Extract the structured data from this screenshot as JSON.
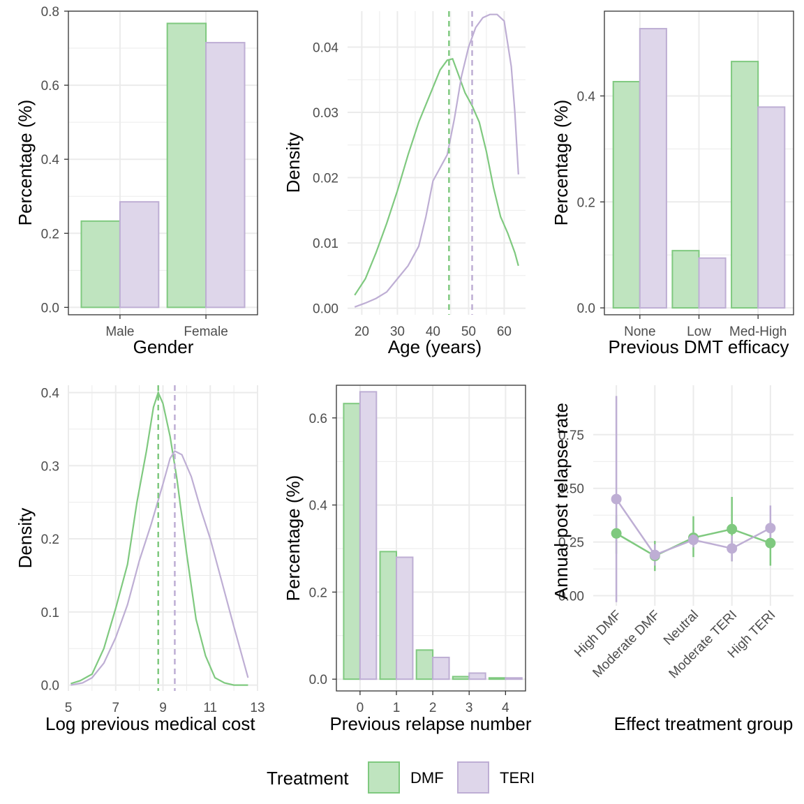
{
  "colors": {
    "DMF": "#7fc97f",
    "TERI": "#beaed4",
    "DMF_fill": "#bfe4bf",
    "TERI_fill": "#ded6ea"
  },
  "legend": {
    "title": "Treatment",
    "items": [
      {
        "key": "DMF",
        "label": "DMF"
      },
      {
        "key": "TERI",
        "label": "TERI"
      }
    ]
  },
  "chart_data": [
    {
      "id": "gender",
      "type": "bar",
      "theme": "bw",
      "xlabel": "Gender",
      "ylabel": "Percentage (%)",
      "categories": [
        "Male",
        "Female"
      ],
      "ylim": [
        -0.02,
        0.8
      ],
      "yticks": [
        0.0,
        0.2,
        0.4,
        0.6,
        0.8
      ],
      "series": [
        {
          "name": "DMF",
          "values": [
            0.233,
            0.767
          ]
        },
        {
          "name": "TERI",
          "values": [
            0.285,
            0.715
          ]
        }
      ]
    },
    {
      "id": "age",
      "type": "line",
      "theme": "minimal",
      "xlabel": "Age (years)",
      "ylabel": "Density",
      "xlim": [
        16,
        66
      ],
      "ylim": [
        -0.001,
        0.0455
      ],
      "xticks": [
        20,
        30,
        40,
        50,
        60
      ],
      "yticks": [
        0.0,
        0.01,
        0.02,
        0.03,
        0.04
      ],
      "vlines": [
        {
          "series": "DMF",
          "x": 44.5
        },
        {
          "series": "TERI",
          "x": 51.0
        }
      ],
      "series": [
        {
          "name": "DMF",
          "points": [
            [
              18,
              0.002
            ],
            [
              21,
              0.0045
            ],
            [
              24,
              0.0085
            ],
            [
              27,
              0.013
            ],
            [
              30,
              0.018
            ],
            [
              33,
              0.0235
            ],
            [
              36,
              0.0285
            ],
            [
              39,
              0.0325
            ],
            [
              42,
              0.0365
            ],
            [
              44,
              0.038
            ],
            [
              45.5,
              0.0382
            ],
            [
              47,
              0.036
            ],
            [
              49,
              0.033
            ],
            [
              51,
              0.031
            ],
            [
              53,
              0.0285
            ],
            [
              55,
              0.024
            ],
            [
              57,
              0.0185
            ],
            [
              59,
              0.014
            ],
            [
              61,
              0.0115
            ],
            [
              63,
              0.0085
            ],
            [
              64,
              0.0065
            ]
          ]
        },
        {
          "name": "TERI",
          "points": [
            [
              18,
              0.0002
            ],
            [
              21,
              0.0008
            ],
            [
              24,
              0.0015
            ],
            [
              27,
              0.0025
            ],
            [
              30,
              0.0045
            ],
            [
              33,
              0.0065
            ],
            [
              36,
              0.0095
            ],
            [
              38,
              0.014
            ],
            [
              40,
              0.0195
            ],
            [
              42,
              0.0215
            ],
            [
              44,
              0.0235
            ],
            [
              46,
              0.029
            ],
            [
              48,
              0.0355
            ],
            [
              50,
              0.04
            ],
            [
              52,
              0.043
            ],
            [
              54,
              0.0445
            ],
            [
              56,
              0.045
            ],
            [
              58,
              0.045
            ],
            [
              60,
              0.044
            ],
            [
              62,
              0.037
            ],
            [
              63,
              0.03
            ],
            [
              64,
              0.0205
            ]
          ]
        }
      ]
    },
    {
      "id": "dmt",
      "type": "bar",
      "theme": "bw",
      "xlabel": "Previous DMT efficacy",
      "ylabel": "Percentage (%)",
      "categories": [
        "None",
        "Low",
        "Med-High"
      ],
      "ylim": [
        -0.013,
        0.56
      ],
      "yticks": [
        0.0,
        0.2,
        0.4
      ],
      "series": [
        {
          "name": "DMF",
          "values": [
            0.427,
            0.108,
            0.465
          ]
        },
        {
          "name": "TERI",
          "values": [
            0.527,
            0.094,
            0.379
          ]
        }
      ]
    },
    {
      "id": "cost",
      "type": "line",
      "theme": "minimal",
      "xlabel": "Log previous medical cost",
      "ylabel": "Density",
      "xlim": [
        5,
        13
      ],
      "ylim": [
        -0.008,
        0.41
      ],
      "xticks": [
        5,
        7,
        9,
        11,
        13
      ],
      "yticks": [
        0.0,
        0.1,
        0.2,
        0.3,
        0.4
      ],
      "vlines": [
        {
          "series": "DMF",
          "x": 8.8
        },
        {
          "series": "TERI",
          "x": 9.5
        }
      ],
      "series": [
        {
          "name": "DMF",
          "points": [
            [
              5.1,
              0.002
            ],
            [
              5.5,
              0.006
            ],
            [
              6.0,
              0.015
            ],
            [
              6.5,
              0.05
            ],
            [
              7.0,
              0.105
            ],
            [
              7.5,
              0.165
            ],
            [
              7.9,
              0.25
            ],
            [
              8.3,
              0.32
            ],
            [
              8.6,
              0.38
            ],
            [
              8.8,
              0.4
            ],
            [
              9.0,
              0.385
            ],
            [
              9.3,
              0.34
            ],
            [
              9.6,
              0.28
            ],
            [
              10.0,
              0.18
            ],
            [
              10.4,
              0.09
            ],
            [
              10.8,
              0.04
            ],
            [
              11.2,
              0.01
            ],
            [
              11.6,
              0.003
            ],
            [
              12.0,
              0.0
            ],
            [
              12.6,
              0.0
            ]
          ]
        },
        {
          "name": "TERI",
          "points": [
            [
              5.1,
              0.0
            ],
            [
              5.6,
              0.003
            ],
            [
              6.0,
              0.01
            ],
            [
              6.5,
              0.03
            ],
            [
              7.0,
              0.065
            ],
            [
              7.5,
              0.11
            ],
            [
              8.0,
              0.17
            ],
            [
              8.5,
              0.22
            ],
            [
              9.0,
              0.275
            ],
            [
              9.3,
              0.31
            ],
            [
              9.5,
              0.32
            ],
            [
              9.8,
              0.315
            ],
            [
              10.2,
              0.285
            ],
            [
              10.6,
              0.24
            ],
            [
              11.0,
              0.2
            ],
            [
              11.5,
              0.14
            ],
            [
              12.0,
              0.08
            ],
            [
              12.3,
              0.045
            ],
            [
              12.6,
              0.01
            ]
          ]
        }
      ]
    },
    {
      "id": "relapse",
      "type": "bar",
      "theme": "bw",
      "xlabel": "Previous relapse number",
      "ylabel": "Percentage (%)",
      "categories": [
        "0",
        "1",
        "2",
        "3",
        "4"
      ],
      "xlim": [
        -0.65,
        4.55
      ],
      "ylim": [
        -0.027,
        0.675
      ],
      "yticks": [
        0.0,
        0.2,
        0.4,
        0.6
      ],
      "series": [
        {
          "name": "DMF",
          "values": [
            0.633,
            0.293,
            0.067,
            0.006,
            0.003
          ]
        },
        {
          "name": "TERI",
          "values": [
            0.66,
            0.28,
            0.05,
            0.014,
            0.003
          ]
        }
      ]
    },
    {
      "id": "effect",
      "type": "scatter",
      "theme": "minimal",
      "xlabel": "Effect treatment group",
      "ylabel": "Annual post relapse rate",
      "categories": [
        "High DMF",
        "Moderate DMF",
        "Neutral",
        "Moderate TERI",
        "High TERI"
      ],
      "ylim": [
        -0.047,
        0.98
      ],
      "yticks": [
        0.0,
        0.25,
        0.5,
        0.75
      ],
      "ytick_labels": [
        "0.00",
        "0.25",
        "0.50",
        "0.75"
      ],
      "series": [
        {
          "name": "DMF",
          "values": [
            0.29,
            0.185,
            0.27,
            0.31,
            0.245
          ],
          "lower": [
            0.195,
            0.115,
            0.18,
            0.16,
            0.14
          ],
          "upper": [
            0.375,
            0.255,
            0.37,
            0.46,
            0.35
          ]
        },
        {
          "name": "TERI",
          "values": [
            0.45,
            0.19,
            0.26,
            0.22,
            0.315
          ],
          "lower": [
            -0.03,
            0.14,
            0.225,
            0.16,
            0.23
          ],
          "upper": [
            0.93,
            0.24,
            0.295,
            0.28,
            0.42
          ]
        }
      ]
    }
  ]
}
